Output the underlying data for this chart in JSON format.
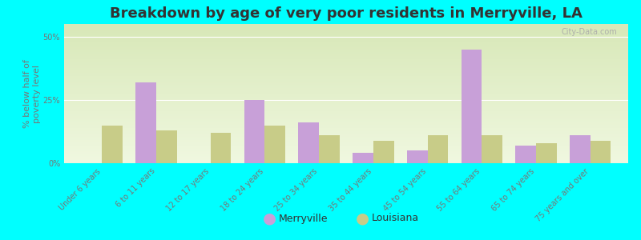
{
  "title": "Breakdown by age of very poor residents in Merryville, LA",
  "ylabel": "% below half of\npoverty level",
  "categories": [
    "Under 6 years",
    "6 to 11 years",
    "12 to 17 years",
    "18 to 24 years",
    "25 to 34 years",
    "35 to 44 years",
    "45 to 54 years",
    "55 to 64 years",
    "65 to 74 years",
    "75 years and over"
  ],
  "merryville": [
    0,
    32,
    0,
    25,
    16,
    4,
    5,
    45,
    7,
    11
  ],
  "louisiana": [
    15,
    13,
    12,
    15,
    11,
    9,
    11,
    11,
    8,
    9
  ],
  "merryville_color": "#c8a0d8",
  "louisiana_color": "#c8cc88",
  "bar_width": 0.38,
  "ylim": [
    0,
    55
  ],
  "ytick_labels": [
    "0%",
    "25%",
    "50%"
  ],
  "ytick_values": [
    0,
    25,
    50
  ],
  "background_color": "#00ffff",
  "plot_bg_color_top": "#d8e8b8",
  "plot_bg_color_bottom": "#f0f8e0",
  "title_fontsize": 13,
  "axis_label_fontsize": 8,
  "tick_fontsize": 7,
  "legend_labels": [
    "Merryville",
    "Louisiana"
  ],
  "watermark": "City-Data.com"
}
